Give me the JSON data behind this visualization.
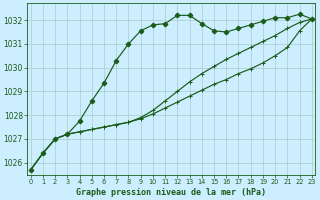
{
  "title": "Graphe pression niveau de la mer (hPa)",
  "background_color": "#cceeff",
  "grid_color": "#aacccc",
  "line_color": "#1a5c1a",
  "ylim": [
    1025.5,
    1032.7
  ],
  "xlim": [
    -0.3,
    23.3
  ],
  "yticks": [
    1026,
    1027,
    1028,
    1029,
    1030,
    1031,
    1032
  ],
  "xticks": [
    0,
    1,
    2,
    3,
    4,
    5,
    6,
    7,
    8,
    9,
    10,
    11,
    12,
    13,
    14,
    15,
    16,
    17,
    18,
    19,
    20,
    21,
    22,
    23
  ],
  "series1_x": [
    0,
    1,
    2,
    3,
    4,
    5,
    6,
    7,
    8,
    9,
    10,
    11,
    12,
    13,
    14,
    15,
    16,
    17,
    18,
    19,
    20,
    21,
    22,
    23
  ],
  "series1_y": [
    1025.7,
    1026.4,
    1027.0,
    1027.2,
    1027.75,
    1028.6,
    1029.35,
    1030.3,
    1031.0,
    1031.55,
    1031.8,
    1031.85,
    1032.2,
    1032.2,
    1031.85,
    1031.55,
    1031.5,
    1031.65,
    1031.8,
    1031.95,
    1032.1,
    1032.1,
    1032.25,
    1032.05
  ],
  "series2_x": [
    0,
    1,
    2,
    3,
    4,
    5,
    6,
    7,
    8,
    9,
    10,
    11,
    12,
    13,
    14,
    15,
    16,
    17,
    18,
    19,
    20,
    21,
    22,
    23
  ],
  "series2_y": [
    1025.7,
    1026.4,
    1027.0,
    1027.2,
    1027.3,
    1027.4,
    1027.5,
    1027.6,
    1027.7,
    1027.85,
    1028.05,
    1028.3,
    1028.55,
    1028.8,
    1029.05,
    1029.3,
    1029.5,
    1029.75,
    1029.95,
    1030.2,
    1030.5,
    1030.85,
    1031.55,
    1032.05
  ],
  "series3_x": [
    0,
    1,
    2,
    3,
    4,
    5,
    6,
    7,
    8,
    9,
    10,
    11,
    12,
    13,
    14,
    15,
    16,
    17,
    18,
    19,
    20,
    21,
    22,
    23
  ],
  "series3_y": [
    1025.7,
    1026.4,
    1027.0,
    1027.2,
    1027.3,
    1027.4,
    1027.5,
    1027.6,
    1027.7,
    1027.9,
    1028.2,
    1028.6,
    1029.0,
    1029.4,
    1029.75,
    1030.05,
    1030.35,
    1030.6,
    1030.85,
    1031.1,
    1031.35,
    1031.65,
    1031.9,
    1032.05
  ],
  "ytick_fontsize": 5.5,
  "xtick_fontsize": 4.8,
  "xlabel_fontsize": 6.0,
  "linewidth": 0.85,
  "markersize1": 2.3,
  "markersize2": 2.2
}
